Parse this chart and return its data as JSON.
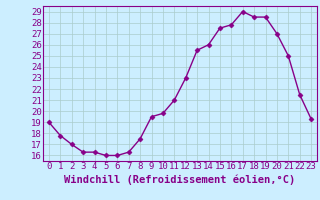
{
  "x": [
    0,
    1,
    2,
    3,
    4,
    5,
    6,
    7,
    8,
    9,
    10,
    11,
    12,
    13,
    14,
    15,
    16,
    17,
    18,
    19,
    20,
    21,
    22,
    23
  ],
  "y": [
    19.0,
    17.8,
    17.0,
    16.3,
    16.3,
    16.0,
    16.0,
    16.3,
    17.5,
    19.5,
    19.8,
    21.0,
    23.0,
    25.5,
    26.0,
    27.5,
    27.8,
    29.0,
    28.5,
    28.5,
    27.0,
    25.0,
    21.5,
    19.3
  ],
  "line_color": "#880088",
  "marker": "D",
  "marker_size": 2.5,
  "bg_color": "#cceeff",
  "grid_color": "#aacccc",
  "xlabel": "Windchill (Refroidissement éolien,°C)",
  "xlim": [
    -0.5,
    23.5
  ],
  "ylim": [
    15.5,
    29.5
  ],
  "yticks": [
    16,
    17,
    18,
    19,
    20,
    21,
    22,
    23,
    24,
    25,
    26,
    27,
    28,
    29
  ],
  "xticks": [
    0,
    1,
    2,
    3,
    4,
    5,
    6,
    7,
    8,
    9,
    10,
    11,
    12,
    13,
    14,
    15,
    16,
    17,
    18,
    19,
    20,
    21,
    22,
    23
  ],
  "tick_font_size": 6.5,
  "xlabel_font_size": 7.5,
  "line_width": 1.0,
  "spine_color": "#880088"
}
